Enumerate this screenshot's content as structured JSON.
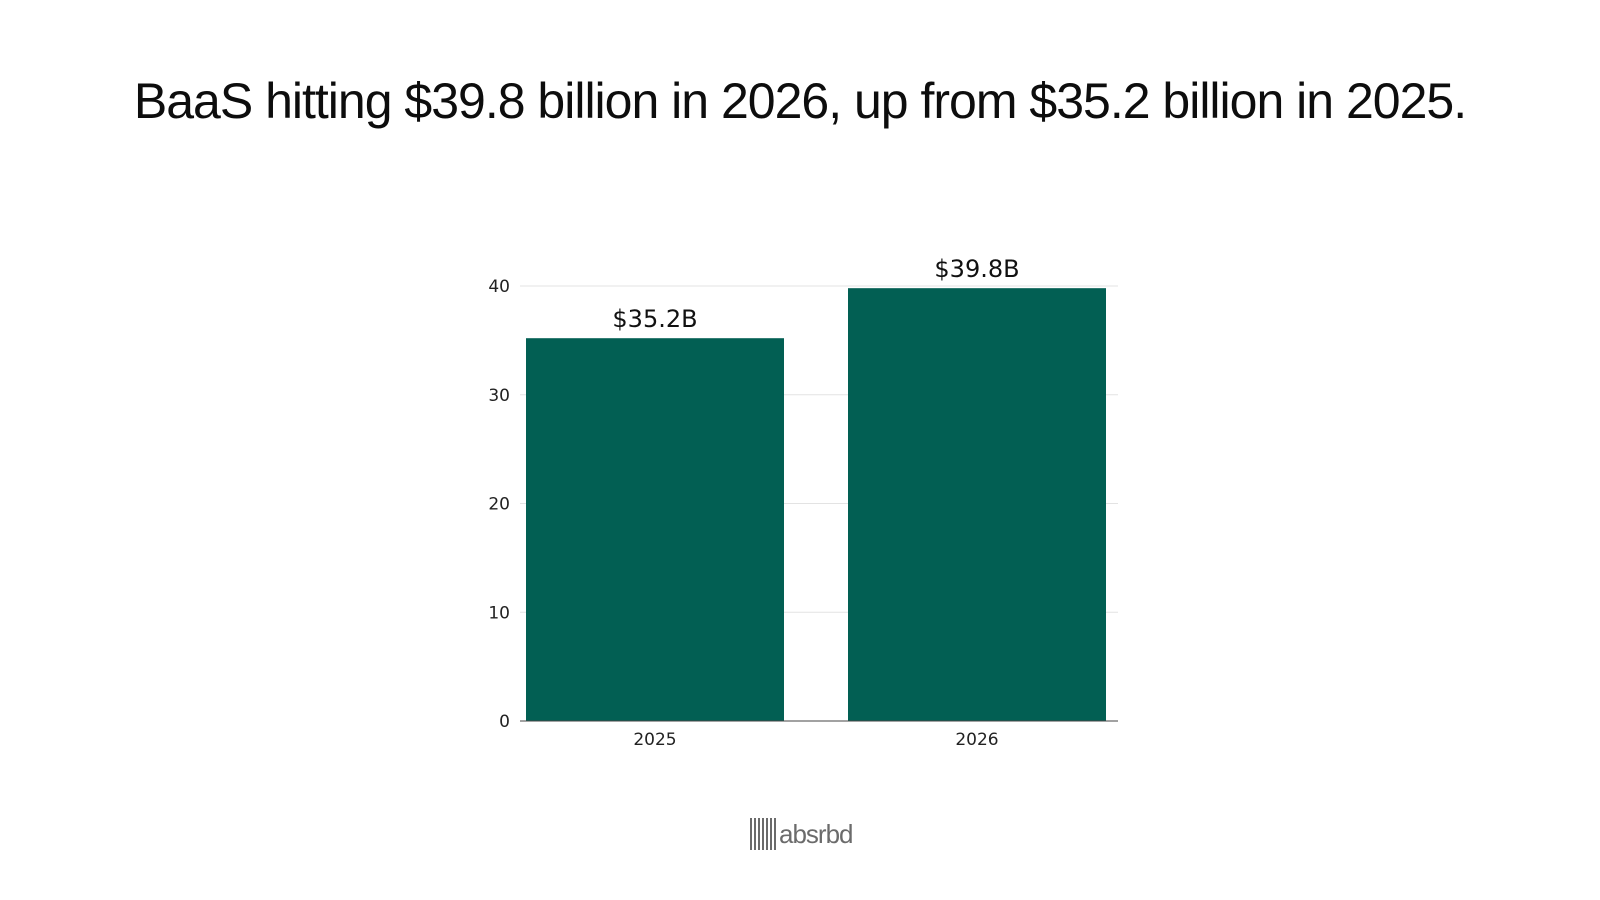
{
  "title": "BaaS hitting $39.8 billion in 2026, up from $35.2 billion in 2025.",
  "brand": {
    "name": "absrbd",
    "icon": "barcode-logo-icon"
  },
  "colors": {
    "bar": "#025f53",
    "grid": "#e3e3e3",
    "axis": "#444444"
  },
  "chart_data": {
    "type": "bar",
    "categories": [
      "2025",
      "2026"
    ],
    "values": [
      35.2,
      39.8
    ],
    "data_labels": [
      "$35.2B",
      "$39.8B"
    ],
    "title": "",
    "xlabel": "",
    "ylabel": "",
    "ylim": [
      0,
      40
    ],
    "yticks": [
      0,
      10,
      20,
      30,
      40
    ],
    "grid": true,
    "legend": "none"
  }
}
